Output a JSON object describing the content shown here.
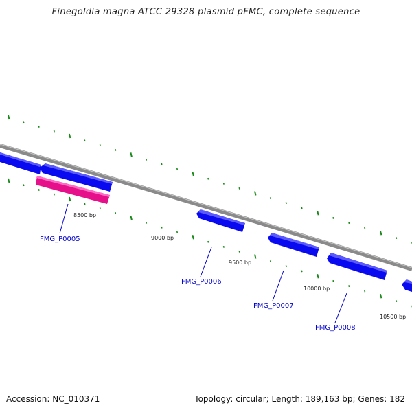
{
  "title": "Finegoldia magna ATCC 29328 plasmid pFMC, complete sequence",
  "footer": {
    "accession": "Accession: NC_010371",
    "summary": "Topology: circular; Length: 189,163 bp; Genes: 182"
  },
  "colors": {
    "backbone": "#8a8a8a",
    "gene_blue": "#0a0af0",
    "gene_pink": "#ff1aa0",
    "tick_green": "#1a8a1a",
    "label_blue": "#0000cc"
  },
  "scale_labels": [
    {
      "text": "8500 bp"
    },
    {
      "text": "9000 bp"
    },
    {
      "text": "9500 bp"
    },
    {
      "text": "10000 bp"
    },
    {
      "text": "10500 bp"
    }
  ],
  "genes": [
    {
      "label": "FMG_P0005",
      "color": "pink"
    },
    {
      "label": "FMG_P0006",
      "color": "blue"
    },
    {
      "label": "FMG_P0007",
      "color": "blue"
    },
    {
      "label": "FMG_P0008",
      "color": "blue"
    }
  ]
}
